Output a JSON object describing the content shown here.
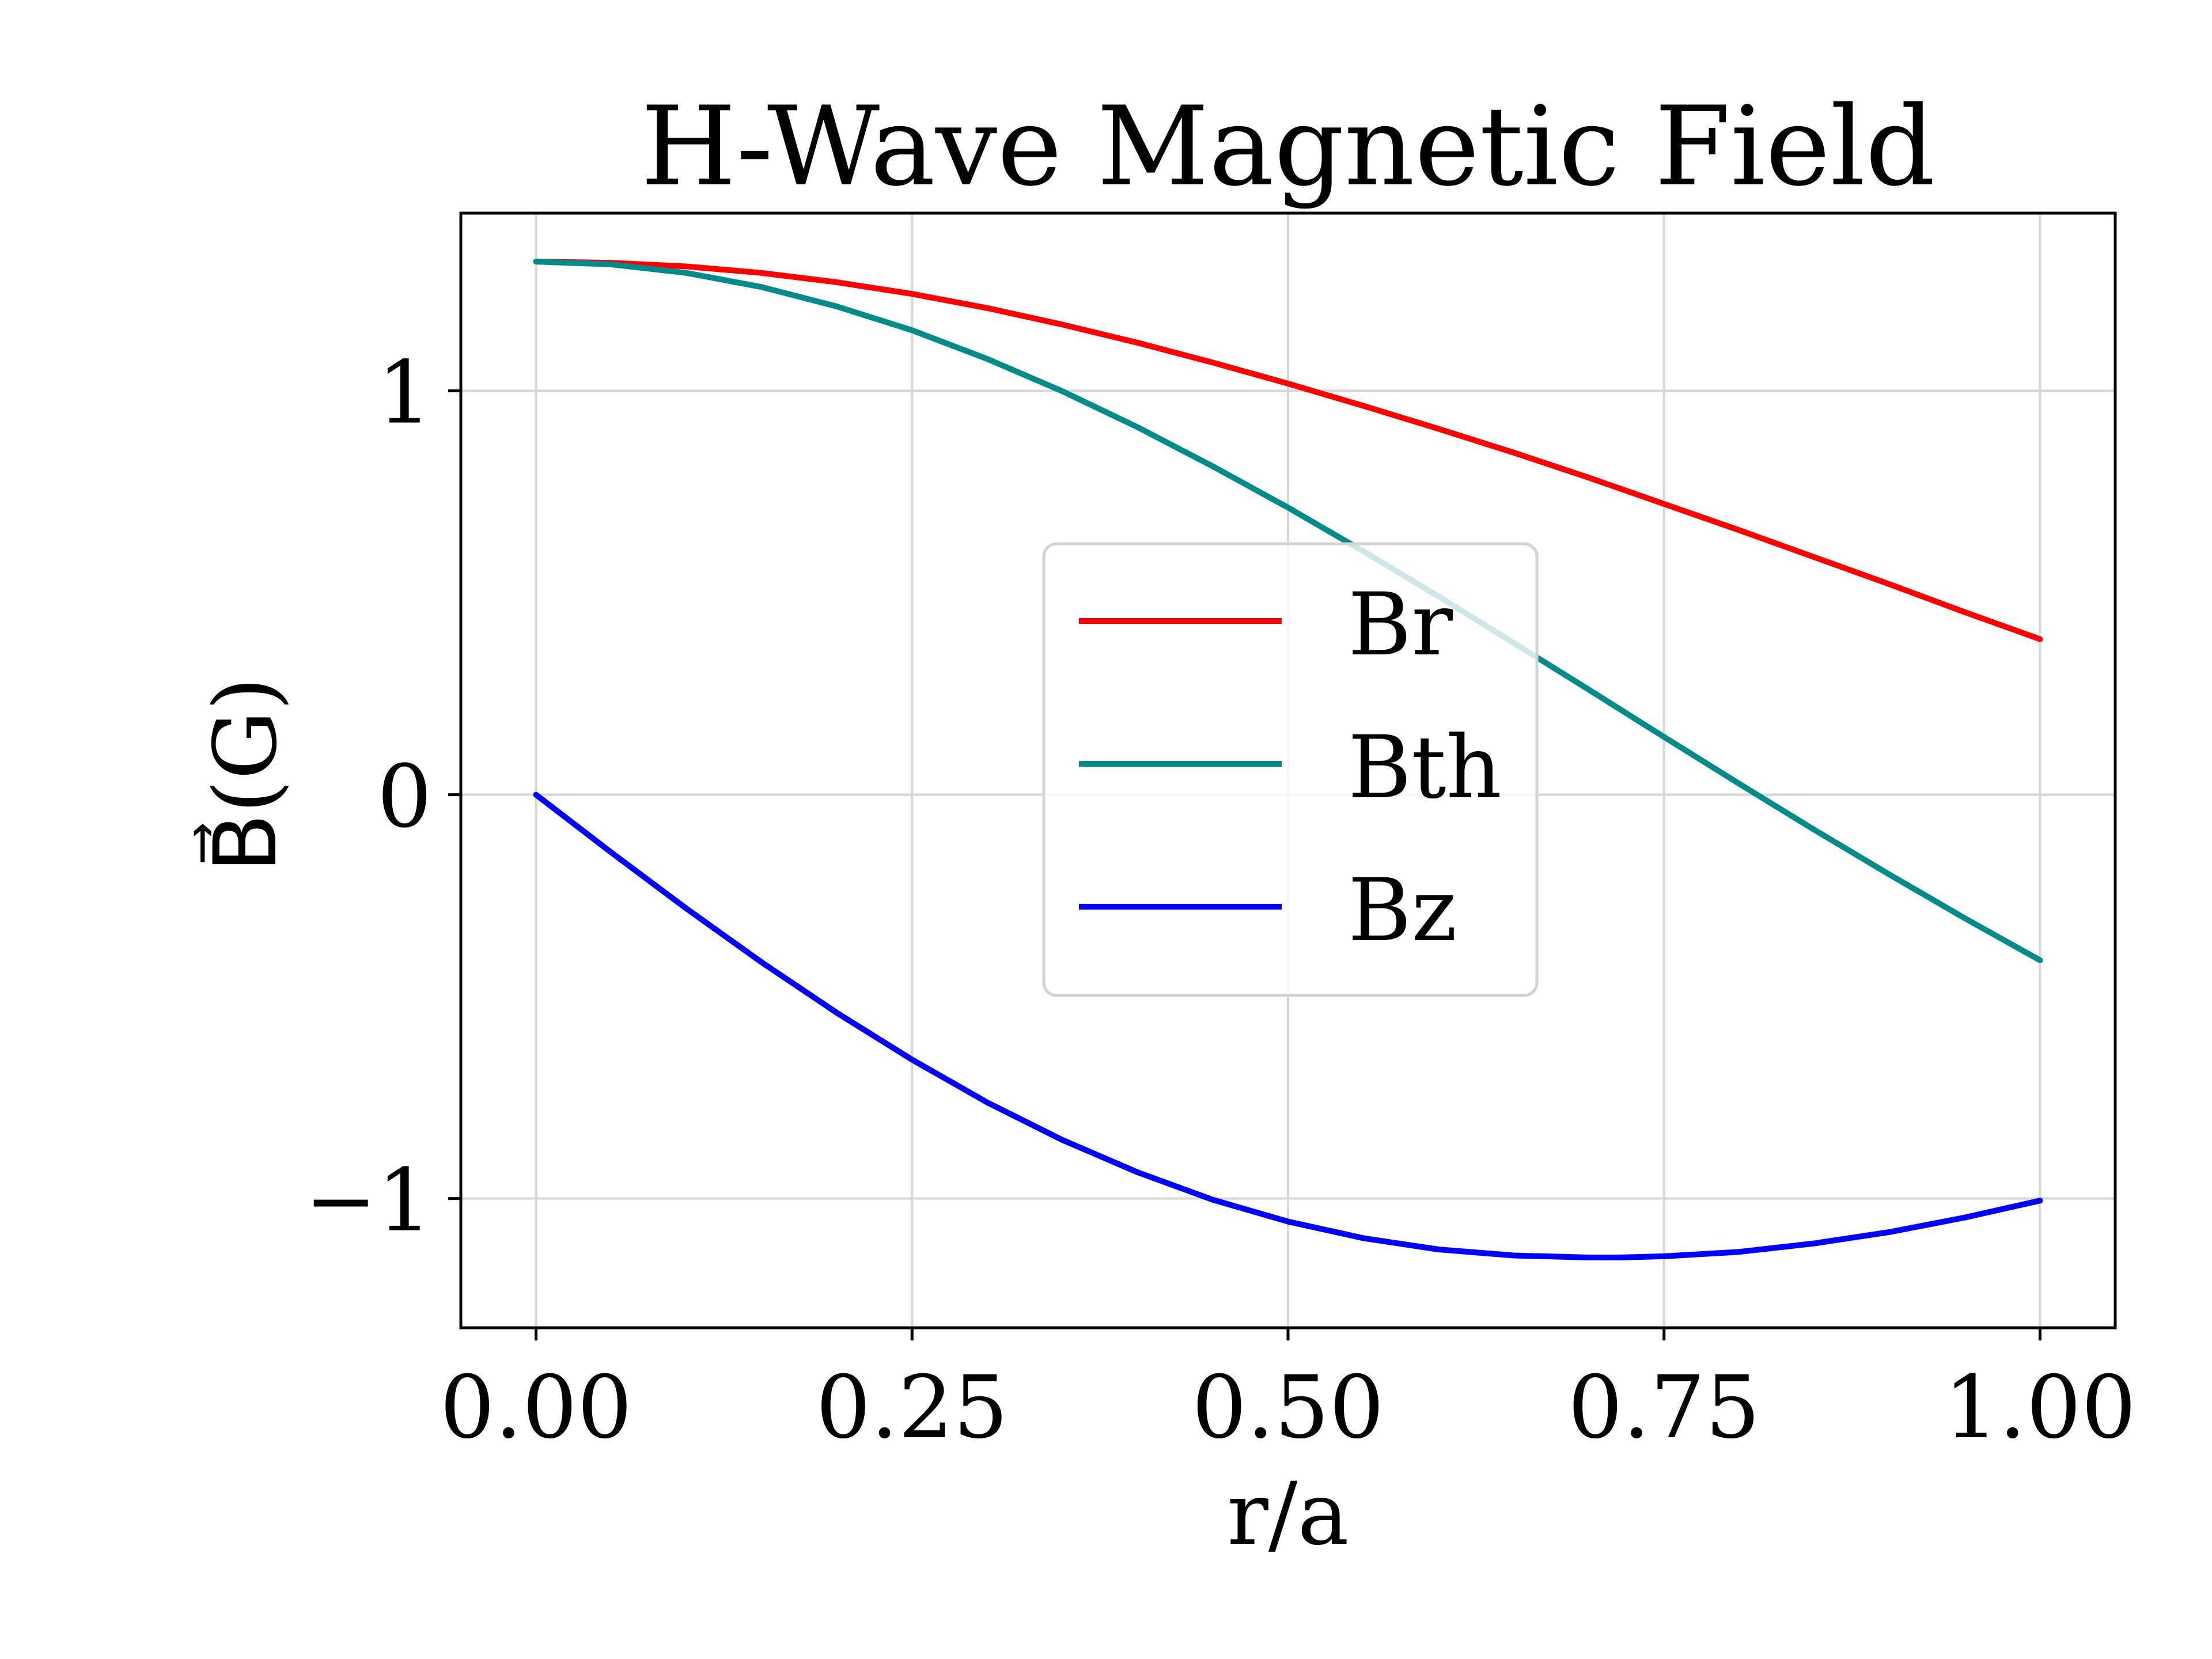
{
  "chart_data": {
    "type": "line",
    "title": "H-Wave Magnetic Field",
    "xlabel": "r/a",
    "ylabel": "B⃗(G)",
    "xlim": [
      -0.05,
      1.05
    ],
    "ylim": [
      -1.32,
      1.44
    ],
    "xticks": [
      0.0,
      0.25,
      0.5,
      0.75,
      1.0
    ],
    "xtick_labels": [
      "0.00",
      "0.25",
      "0.50",
      "0.75",
      "1.00"
    ],
    "yticks": [
      -1,
      0,
      1
    ],
    "ytick_labels": [
      "−1",
      "0",
      "1"
    ],
    "grid": true,
    "legend_position": "center",
    "series": [
      {
        "name": "Br",
        "color": "#ff0000",
        "x": [
          0.0,
          0.05,
          0.1,
          0.15,
          0.2,
          0.25,
          0.3,
          0.35,
          0.4,
          0.45,
          0.5,
          0.55,
          0.6,
          0.65,
          0.7,
          0.75,
          0.8,
          0.85,
          0.9,
          0.95,
          1.0
        ],
        "y": [
          1.32,
          1.317,
          1.308,
          1.292,
          1.269,
          1.24,
          1.205,
          1.164,
          1.119,
          1.07,
          1.018,
          0.963,
          0.906,
          0.847,
          0.785,
          0.72,
          0.655,
          0.588,
          0.521,
          0.452,
          0.385
        ]
      },
      {
        "name": "Bth",
        "color": "#008b8b",
        "x": [
          0.0,
          0.05,
          0.1,
          0.15,
          0.2,
          0.25,
          0.3,
          0.35,
          0.4,
          0.45,
          0.5,
          0.55,
          0.6,
          0.65,
          0.7,
          0.75,
          0.8,
          0.85,
          0.9,
          0.95,
          1.0
        ],
        "y": [
          1.32,
          1.313,
          1.292,
          1.257,
          1.209,
          1.15,
          1.079,
          0.999,
          0.91,
          0.813,
          0.711,
          0.603,
          0.491,
          0.376,
          0.26,
          0.143,
          0.027,
          -0.087,
          -0.198,
          -0.306,
          -0.41
        ]
      },
      {
        "name": "Bz",
        "color": "#0000ff",
        "x": [
          0.0,
          0.05,
          0.1,
          0.15,
          0.2,
          0.25,
          0.3,
          0.35,
          0.4,
          0.45,
          0.5,
          0.55,
          0.6,
          0.65,
          0.7,
          0.72,
          0.75,
          0.8,
          0.85,
          0.9,
          0.95,
          1.0
        ],
        "y": [
          0.0,
          -0.143,
          -0.282,
          -0.415,
          -0.54,
          -0.656,
          -0.762,
          -0.855,
          -0.935,
          -1.003,
          -1.057,
          -1.098,
          -1.126,
          -1.141,
          -1.146,
          -1.146,
          -1.143,
          -1.132,
          -1.111,
          -1.083,
          -1.047,
          -1.005
        ]
      }
    ]
  }
}
